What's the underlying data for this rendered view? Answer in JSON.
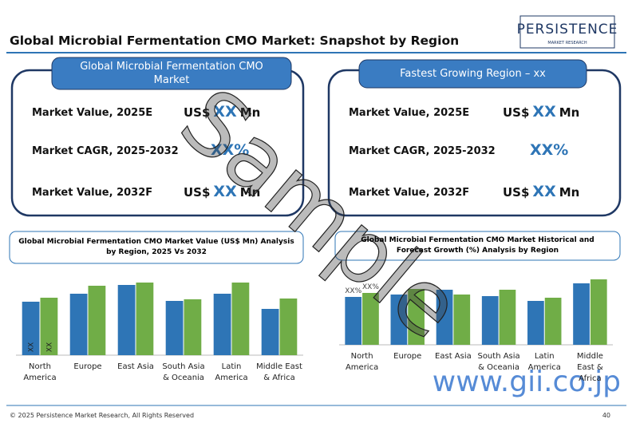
{
  "header": {
    "title": "Global Microbial Fermentation CMO Market: Snapshot by Region",
    "logo": "PERSISTENCE",
    "logo_sub": "MARKET RESEARCH"
  },
  "panels": [
    {
      "title": "Global Microbial Fermentation CMO Market",
      "rows": [
        {
          "label": "Market Value, 2025E",
          "prefix": "US$",
          "value": "XX",
          "suffix": "Mn"
        },
        {
          "label": "Market CAGR, 2025-2032",
          "prefix": "",
          "value": "XX%",
          "suffix": ""
        },
        {
          "label": "Market Value, 2032F",
          "prefix": "US$",
          "value": "XX",
          "suffix": "Mn"
        }
      ]
    },
    {
      "title": "Fastest Growing Region – xx",
      "rows": [
        {
          "label": "Market Value, 2025E",
          "prefix": "US$",
          "value": "XX",
          "suffix": "Mn"
        },
        {
          "label": "Market CAGR, 2025-2032",
          "prefix": "",
          "value": "XX%",
          "suffix": ""
        },
        {
          "label": "Market Value, 2032F",
          "prefix": "US$",
          "value": "XX",
          "suffix": "Mn"
        }
      ]
    }
  ],
  "chart_data": [
    {
      "type": "bar",
      "title": "Global Microbial Fermentation CMO Market Value (US$ Mn) Analysis by Region, 2025 Vs 2032",
      "categories": [
        "North America",
        "Europe",
        "East Asia",
        "South Asia & Oceania",
        "Latin America",
        "Middle East & Africa"
      ],
      "series": [
        {
          "color": "#2e75b6",
          "values": [
            67,
            77,
            88,
            68,
            77,
            58
          ]
        },
        {
          "color": "#70ad47",
          "values": [
            72,
            87,
            91,
            70,
            91,
            71
          ]
        }
      ],
      "bar_labels": [
        "XX",
        "XX"
      ],
      "ylim": [
        0,
        100
      ]
    },
    {
      "type": "bar",
      "title": "Global Microbial Fermentation CMO Market Historical and Forecast Growth (%) Analysis by Region",
      "categories": [
        "North America",
        "Europe",
        "East Asia",
        "South Asia & Oceania",
        "Latin America",
        "Middle East & Africa"
      ],
      "series": [
        {
          "color": "#2e75b6",
          "values": [
            60,
            63,
            69,
            61,
            55,
            77
          ]
        },
        {
          "color": "#70ad47",
          "values": [
            65,
            70,
            63,
            69,
            59,
            82
          ]
        }
      ],
      "bar_labels": [
        "XX%",
        "XX%"
      ],
      "ylim": [
        0,
        100
      ]
    }
  ],
  "watermarks": [
    "Sample",
    "www.gii.co.jp"
  ],
  "footer": {
    "copyright": "© 2025 Persistence Market Research, All Rights Reserved",
    "page": "40"
  }
}
